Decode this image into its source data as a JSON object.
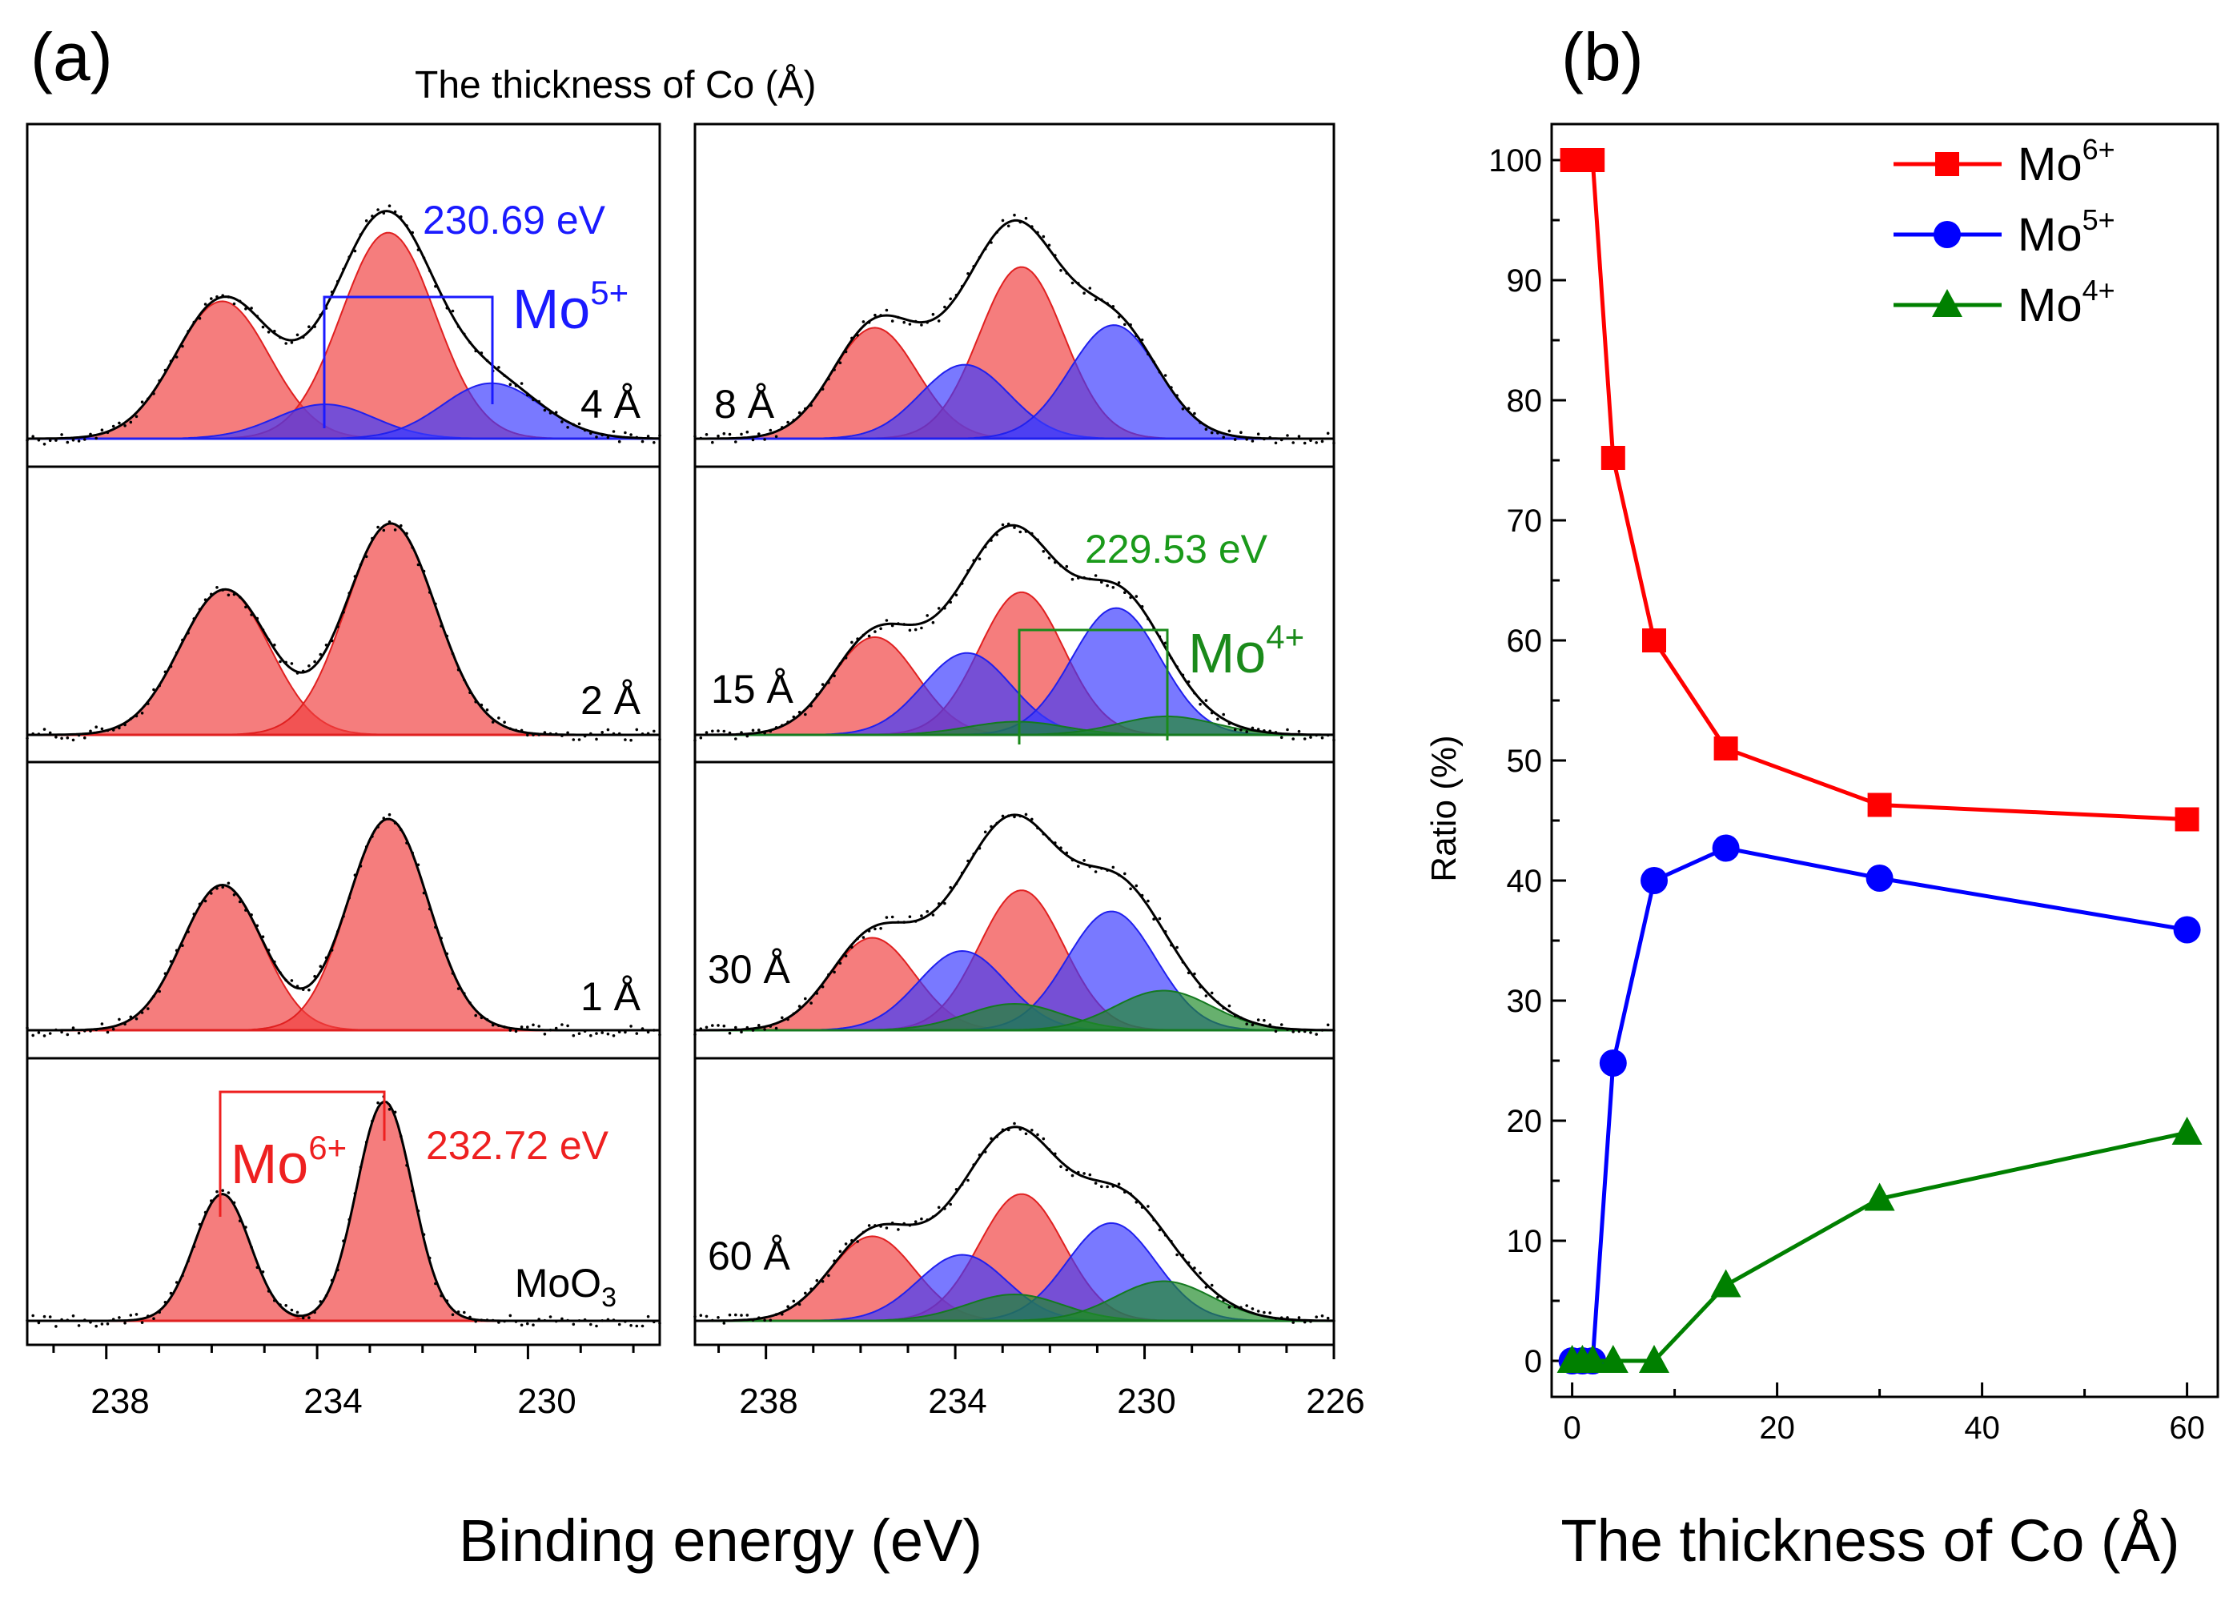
{
  "panel_a": {
    "letter": "(a)",
    "title": "The thickness of Co (Å)",
    "xlabel": "Binding energy (eV)",
    "left_ticks": [
      "238",
      "234",
      "230"
    ],
    "right_ticks": [
      "238",
      "234",
      "230",
      "226"
    ],
    "rows_left": [
      "4 Å",
      "2 Å",
      "1 Å",
      "MoO"
    ],
    "moo3_subscript": "3",
    "rows_right": [
      "8 Å",
      "15 Å",
      "30 Å",
      "60 Å"
    ],
    "annotations": {
      "mo5_energy": "230.69 eV",
      "mo5_label": "Mo",
      "mo5_sup": "5+",
      "mo4_energy": "229.53 eV",
      "mo4_label": "Mo",
      "mo4_sup": "4+",
      "mo6_energy": "232.72 eV",
      "mo6_label": "Mo",
      "mo6_sup": "6+"
    }
  },
  "panel_b": {
    "letter": "(b)"
  },
  "colors": {
    "mo6": "#ff0000",
    "mo5": "#0000ff",
    "mo4": "#008000",
    "mo6_fill": "#f04040",
    "mo5_fill": "#3a3aff",
    "mo4_fill": "#1f8a2a"
  },
  "chart_data": [
    {
      "type": "area",
      "title": "The thickness of Co (Å)",
      "xlabel": "Binding energy (eV)",
      "ylabel": "",
      "x_reversed": true,
      "panels": [
        {
          "xlim": [
            239.5,
            227.5
          ],
          "xticks": [
            238,
            234,
            230
          ],
          "spectra": [
            {
              "label": "4 Å",
              "peaks": [
                {
                  "state": "Mo6+",
                  "center": 235.8,
                  "height": 0.52,
                  "fwhm": 2.1
                },
                {
                  "state": "Mo6+",
                  "center": 232.65,
                  "height": 0.78,
                  "fwhm": 2.1
                },
                {
                  "state": "Mo5+",
                  "center": 233.85,
                  "height": 0.13,
                  "fwhm": 2.2
                },
                {
                  "state": "Mo5+",
                  "center": 230.69,
                  "height": 0.21,
                  "fwhm": 2.2
                }
              ]
            },
            {
              "label": "2 Å",
              "peaks": [
                {
                  "state": "Mo6+",
                  "center": 235.75,
                  "height": 0.55,
                  "fwhm": 2.0
                },
                {
                  "state": "Mo6+",
                  "center": 232.6,
                  "height": 0.8,
                  "fwhm": 2.0
                }
              ]
            },
            {
              "label": "1 Å",
              "peaks": [
                {
                  "state": "Mo6+",
                  "center": 235.8,
                  "height": 0.55,
                  "fwhm": 1.8
                },
                {
                  "state": "Mo6+",
                  "center": 232.65,
                  "height": 0.8,
                  "fwhm": 1.8
                }
              ]
            },
            {
              "label": "MoO3",
              "peaks": [
                {
                  "state": "Mo6+",
                  "center": 235.8,
                  "height": 0.48,
                  "fwhm": 1.25
                },
                {
                  "state": "Mo6+",
                  "center": 232.72,
                  "height": 0.83,
                  "fwhm": 1.25
                }
              ]
            }
          ]
        },
        {
          "xlim": [
            239.5,
            226.0
          ],
          "xticks": [
            238,
            234,
            230,
            226
          ],
          "spectra": [
            {
              "label": "8 Å",
              "peaks": [
                {
                  "state": "Mo6+",
                  "center": 235.7,
                  "height": 0.42,
                  "fwhm": 2.1
                },
                {
                  "state": "Mo6+",
                  "center": 232.6,
                  "height": 0.65,
                  "fwhm": 2.1
                },
                {
                  "state": "Mo5+",
                  "center": 233.8,
                  "height": 0.28,
                  "fwhm": 2.2
                },
                {
                  "state": "Mo5+",
                  "center": 230.65,
                  "height": 0.43,
                  "fwhm": 2.2
                }
              ]
            },
            {
              "label": "15 Å",
              "peaks": [
                {
                  "state": "Mo6+",
                  "center": 235.7,
                  "height": 0.37,
                  "fwhm": 2.1
                },
                {
                  "state": "Mo6+",
                  "center": 232.6,
                  "height": 0.54,
                  "fwhm": 2.1
                },
                {
                  "state": "Mo5+",
                  "center": 233.75,
                  "height": 0.31,
                  "fwhm": 2.2
                },
                {
                  "state": "Mo5+",
                  "center": 230.6,
                  "height": 0.48,
                  "fwhm": 2.2
                },
                {
                  "state": "Mo4+",
                  "center": 232.7,
                  "height": 0.05,
                  "fwhm": 2.4
                },
                {
                  "state": "Mo4+",
                  "center": 229.53,
                  "height": 0.07,
                  "fwhm": 2.4
                }
              ]
            },
            {
              "label": "30 Å",
              "peaks": [
                {
                  "state": "Mo6+",
                  "center": 235.75,
                  "height": 0.35,
                  "fwhm": 2.1
                },
                {
                  "state": "Mo6+",
                  "center": 232.6,
                  "height": 0.53,
                  "fwhm": 2.1
                },
                {
                  "state": "Mo5+",
                  "center": 233.85,
                  "height": 0.3,
                  "fwhm": 2.2
                },
                {
                  "state": "Mo5+",
                  "center": 230.7,
                  "height": 0.45,
                  "fwhm": 2.2
                },
                {
                  "state": "Mo4+",
                  "center": 232.75,
                  "height": 0.1,
                  "fwhm": 2.4
                },
                {
                  "state": "Mo4+",
                  "center": 229.6,
                  "height": 0.15,
                  "fwhm": 2.4
                }
              ]
            },
            {
              "label": "60 Å",
              "peaks": [
                {
                  "state": "Mo6+",
                  "center": 235.75,
                  "height": 0.32,
                  "fwhm": 2.1
                },
                {
                  "state": "Mo6+",
                  "center": 232.6,
                  "height": 0.48,
                  "fwhm": 2.1
                },
                {
                  "state": "Mo5+",
                  "center": 233.85,
                  "height": 0.25,
                  "fwhm": 2.2
                },
                {
                  "state": "Mo5+",
                  "center": 230.7,
                  "height": 0.37,
                  "fwhm": 2.2
                },
                {
                  "state": "Mo4+",
                  "center": 232.75,
                  "height": 0.1,
                  "fwhm": 2.4
                },
                {
                  "state": "Mo4+",
                  "center": 229.6,
                  "height": 0.15,
                  "fwhm": 2.4
                }
              ]
            }
          ]
        }
      ]
    },
    {
      "type": "line",
      "title": "",
      "xlabel": "The thickness of Co (Å)",
      "ylabel": "Ratio (%)",
      "xlim": [
        -2,
        63
      ],
      "ylim": [
        -3,
        103
      ],
      "xticks": [
        0,
        20,
        40,
        60
      ],
      "yticks": [
        0,
        10,
        20,
        30,
        40,
        50,
        60,
        70,
        80,
        90,
        100
      ],
      "legend_position": "top-right",
      "series": [
        {
          "name": "Mo",
          "sup": "6+",
          "marker": "square",
          "color": "#ff0000",
          "x": [
            0,
            1,
            2,
            4,
            8,
            15,
            30,
            60
          ],
          "y": [
            100,
            100,
            100,
            75.2,
            60.0,
            51.0,
            46.3,
            45.1
          ]
        },
        {
          "name": "Mo",
          "sup": "5+",
          "marker": "circle",
          "color": "#0000ff",
          "x": [
            0,
            1,
            2,
            4,
            8,
            15,
            30,
            60
          ],
          "y": [
            0,
            0,
            0,
            24.8,
            40.0,
            42.7,
            40.2,
            35.9
          ]
        },
        {
          "name": "Mo",
          "sup": "4+",
          "marker": "triangle",
          "color": "#008000",
          "x": [
            0,
            1,
            2,
            4,
            8,
            15,
            30,
            60
          ],
          "y": [
            0,
            0,
            0,
            0,
            0,
            6.3,
            13.5,
            19.0
          ]
        }
      ]
    }
  ]
}
